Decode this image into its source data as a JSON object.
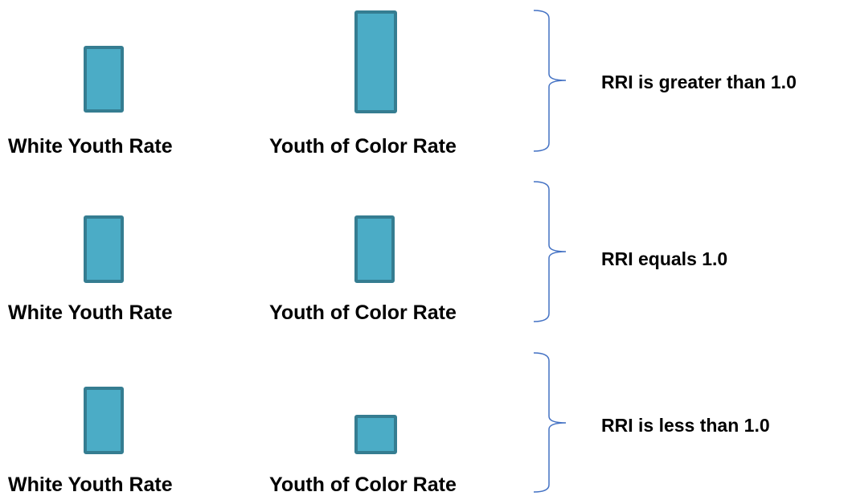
{
  "rows": [
    {
      "white_label": "White Youth Rate",
      "color_label": "Youth of Color Rate",
      "result": "RRI is greater than 1.0"
    },
    {
      "white_label": "White Youth Rate",
      "color_label": "Youth of Color Rate",
      "result": "RRI equals 1.0"
    },
    {
      "white_label": "White Youth Rate",
      "color_label": "Youth of Color Rate",
      "result": "RRI is less than 1.0"
    }
  ],
  "colors": {
    "bar_fill": "#4bacc6",
    "bar_border": "#357d91",
    "brace": "#4472c4"
  }
}
